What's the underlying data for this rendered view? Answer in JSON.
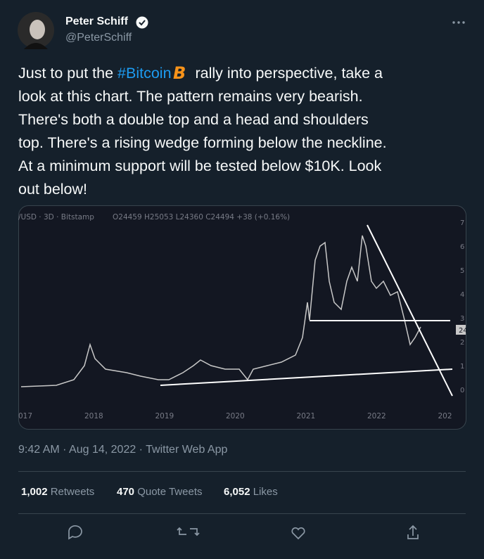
{
  "author": {
    "name": "Peter Schiff",
    "handle": "@PeterSchiff"
  },
  "tweet": {
    "line1_start": "Just to put the ",
    "hashtag": "#Bitcoin",
    "line1_end": "rally into perspective, take a",
    "lines": [
      "look at this chart. The pattern remains very bearish.",
      "There's both a double top and a head and shoulders",
      "top. There's a rising wedge forming below the neckline.",
      "At a minimum support will be tested below $10K. Look",
      "out below!"
    ]
  },
  "chart_image": {
    "symbol": "/USD · 3D · Bitstamp",
    "ohlc": "O24459 H25053 L24360 C24494 +38 (+0.16%)",
    "x_labels": [
      "017",
      "2018",
      "2019",
      "2020",
      "2021",
      "2022",
      "202"
    ],
    "y_labels": [
      "7",
      "6",
      "5",
      "4",
      "3",
      "2",
      "1",
      "0"
    ],
    "price_tag": "24"
  },
  "timestamp": "9:42 AM · Aug 14, 2022 · Twitter Web App",
  "stats": [
    {
      "count": "1,002",
      "label": "Retweets"
    },
    {
      "count": "470",
      "label": "Quote Tweets"
    },
    {
      "count": "6,052",
      "label": "Likes"
    }
  ]
}
